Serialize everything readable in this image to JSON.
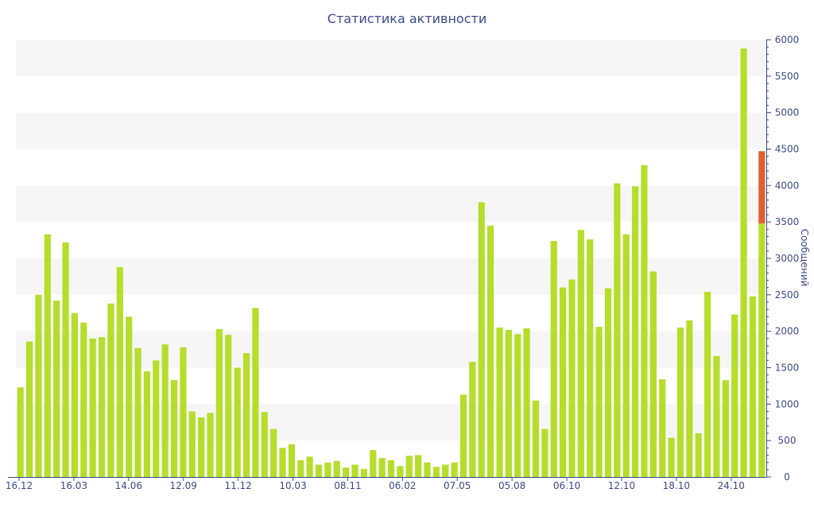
{
  "chart_data": {
    "type": "bar",
    "title": "Статистика активности",
    "xlabel": "",
    "ylabel": "Сообщений",
    "y_axis_side": "right",
    "ylim": [
      0,
      6000
    ],
    "yticks": [
      0,
      500,
      1000,
      1500,
      2000,
      2500,
      3000,
      3500,
      4000,
      4500,
      5000,
      5500,
      6000
    ],
    "x_tick_labels": [
      "16.12",
      "16.03",
      "14.06",
      "12.09",
      "11.12",
      "10.03",
      "08.11",
      "06.02",
      "07.05",
      "05.08",
      "06.10",
      "12.10",
      "18.10",
      "24.10"
    ],
    "grid": "horizontal alternating bands",
    "colors": {
      "bar": "#b5de2b",
      "highlight": "#e06030",
      "axis": "#3b4a8a",
      "band": "#f6f6f6"
    },
    "series": [
      {
        "values": [
          1230,
          1860,
          2500,
          3330,
          2420,
          3220,
          2250,
          2120,
          1900,
          1920,
          2380,
          2880,
          2200,
          1770,
          1450,
          1600,
          1820,
          1330,
          1780,
          900,
          820,
          880,
          2030,
          1950,
          1500,
          1700,
          2320,
          890,
          660,
          400,
          450,
          230,
          280,
          170,
          200,
          220,
          130,
          170,
          110,
          370,
          260,
          230,
          150,
          290,
          300,
          200,
          140,
          170,
          200,
          1130,
          1580,
          3770,
          3450,
          2050,
          2020,
          1960,
          2040,
          1050,
          660,
          3240,
          2600,
          2710,
          3390,
          3260,
          2060,
          2590,
          4030,
          3330,
          3990,
          4280,
          2820,
          1340,
          540,
          2050,
          2150,
          600,
          2540,
          1660,
          1330,
          2230,
          5880,
          2480,
          3480
        ],
        "highlight": {
          "index": 82,
          "from": 3480,
          "to": 4470
        }
      }
    ]
  }
}
